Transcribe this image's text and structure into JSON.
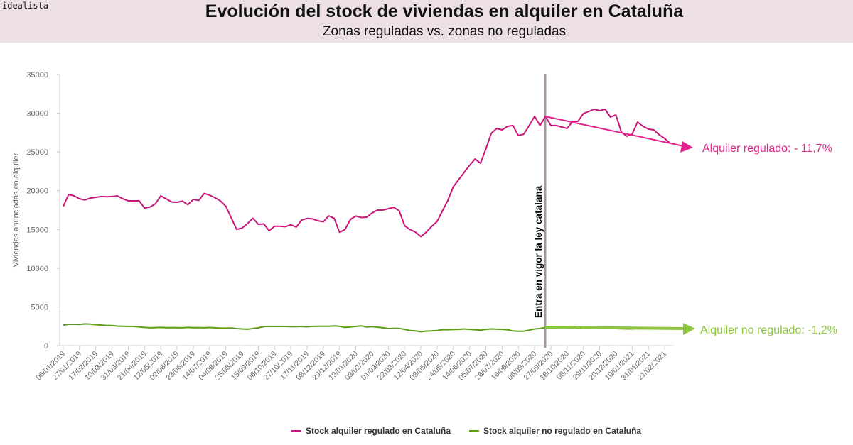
{
  "logo": "idealista",
  "header": {
    "title": "Evolución del stock de viviendas en alquiler en Cataluña",
    "subtitle": "Zonas reguladas vs. zonas no reguladas"
  },
  "chart_data": {
    "type": "line",
    "frequency": "weekly",
    "ylabel": "Viviendas anunciadas en alquiler",
    "ylim": [
      0,
      35000
    ],
    "yticks": [
      0,
      5000,
      10000,
      15000,
      20000,
      25000,
      30000,
      35000
    ],
    "xtick_labels": [
      "06/01/2019",
      "27/01/2019",
      "17/02/2019",
      "10/03/2019",
      "31/03/2019",
      "21/04/2019",
      "12/05/2019",
      "02/06/2019",
      "23/06/2019",
      "14/07/2019",
      "04/08/2019",
      "25/08/2019",
      "15/09/2019",
      "06/10/2019",
      "27/10/2019",
      "17/11/2019",
      "08/12/2019",
      "29/12/2019",
      "19/01/2020",
      "09/02/2020",
      "01/03/2020",
      "22/03/2020",
      "12/04/2020",
      "03/05/2020",
      "24/05/2020",
      "14/06/2020",
      "05/07/2020",
      "26/07/2020",
      "16/08/2020",
      "06/09/2020",
      "27/09/2020",
      "18/10/2020",
      "08/11/2020",
      "29/11/2020",
      "20/12/2020",
      "10/01/2021",
      "31/01/2021",
      "21/02/2021"
    ],
    "grid": false,
    "legend_position": "bottom",
    "series": [
      {
        "name": "Stock alquiler regulado en Cataluña",
        "color": "#c8157a",
        "values": [
          17990,
          19520,
          19330,
          18960,
          18800,
          19050,
          19150,
          19250,
          19220,
          19250,
          19330,
          18960,
          18690,
          18690,
          18690,
          17770,
          17890,
          18320,
          19330,
          18960,
          18540,
          18510,
          18660,
          18200,
          18870,
          18750,
          19640,
          19430,
          19090,
          18690,
          17990,
          16510,
          15010,
          15170,
          15750,
          16450,
          15660,
          15720,
          14840,
          15420,
          15420,
          15360,
          15600,
          15300,
          16210,
          16430,
          16360,
          16120,
          16000,
          16760,
          16430,
          14630,
          14990,
          16300,
          16730,
          16540,
          16580,
          17130,
          17500,
          17500,
          17680,
          17850,
          17410,
          15490,
          14990,
          14660,
          14080,
          14660,
          15390,
          16030,
          17410,
          18790,
          20520,
          21440,
          22360,
          23270,
          24100,
          23550,
          25380,
          27400,
          28040,
          27850,
          28310,
          28410,
          27120,
          27300,
          28410,
          29590,
          28410,
          29590,
          28410,
          28410,
          28220,
          28040,
          28950,
          28950,
          29960,
          30240,
          30510,
          30330,
          30510,
          29500,
          29780,
          27580,
          27030,
          27300,
          28860,
          28310,
          27950,
          27850,
          27210,
          26750,
          26110
        ]
      },
      {
        "name": "Stock alquiler no regulado en Cataluña",
        "color": "#5a9e12",
        "values": [
          2650,
          2750,
          2750,
          2730,
          2800,
          2780,
          2700,
          2650,
          2600,
          2580,
          2520,
          2500,
          2480,
          2470,
          2420,
          2350,
          2300,
          2330,
          2350,
          2320,
          2330,
          2310,
          2300,
          2350,
          2320,
          2330,
          2300,
          2340,
          2300,
          2250,
          2250,
          2260,
          2200,
          2150,
          2120,
          2200,
          2300,
          2450,
          2480,
          2470,
          2480,
          2470,
          2460,
          2450,
          2470,
          2430,
          2480,
          2500,
          2500,
          2490,
          2550,
          2500,
          2350,
          2400,
          2480,
          2550,
          2400,
          2450,
          2380,
          2300,
          2200,
          2220,
          2230,
          2100,
          1950,
          1900,
          1800,
          1880,
          1900,
          1950,
          2050,
          2050,
          2080,
          2100,
          2150,
          2100,
          2050,
          2000,
          2100,
          2150,
          2120,
          2100,
          2050,
          1900,
          1850,
          1870,
          2000,
          2150,
          2200,
          2350,
          2350,
          2300,
          2300,
          2250,
          2280,
          2200,
          2250,
          2250,
          2230,
          2250,
          2250,
          2220,
          2200,
          2180,
          2150,
          2150,
          2200,
          2180,
          2150,
          2150,
          2170,
          2200,
          2200
        ]
      }
    ],
    "annotations": {
      "law_line_label": "Entra en vigor la ley catalana",
      "regulated_change": "Alquiler regulado: - 11,7%",
      "regulated_color": "#e3248c",
      "non_regulated_change": "Alquiler no regulado: -1,2%",
      "non_regulated_color": "#8cc63f"
    }
  }
}
